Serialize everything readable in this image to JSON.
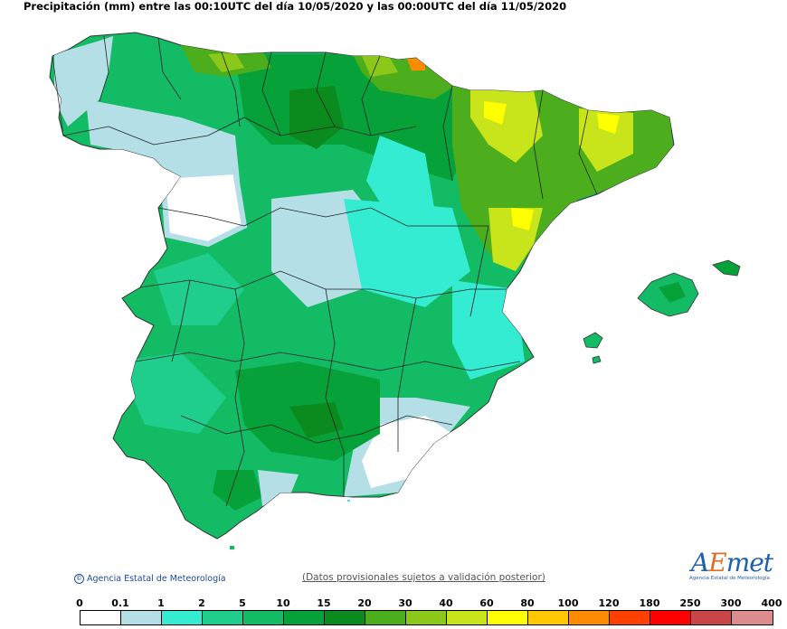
{
  "title": "Precipitación (mm) entre las 00:10UTC del día 10/05/2020 y las 00:00UTC del día 11/05/2020",
  "footer": {
    "copyright": "Agencia Estatal de Meteorología",
    "disclaimer": "(Datos provisionales sujetos a validación posterior)"
  },
  "logo": {
    "text_a": "A",
    "text_e": "E",
    "text_rest": "met",
    "subtitle": "Agencia Estatal de Meteorología"
  },
  "legend": {
    "labels": [
      "0",
      "0.1",
      "1",
      "2",
      "5",
      "10",
      "15",
      "20",
      "30",
      "40",
      "60",
      "80",
      "100",
      "120",
      "180",
      "250",
      "300",
      "400"
    ],
    "colors": [
      "#ffffff",
      "#b4dfe6",
      "#34ecd2",
      "#1fce8c",
      "#12bb64",
      "#07a13a",
      "#0b8a1e",
      "#4cae1c",
      "#8bc81a",
      "#c8e41a",
      "#ffff00",
      "#ffc800",
      "#ff8c00",
      "#ff4000",
      "#ff0000",
      "#c84646",
      "#dc8c8c",
      "#f0c8c8"
    ]
  }
}
